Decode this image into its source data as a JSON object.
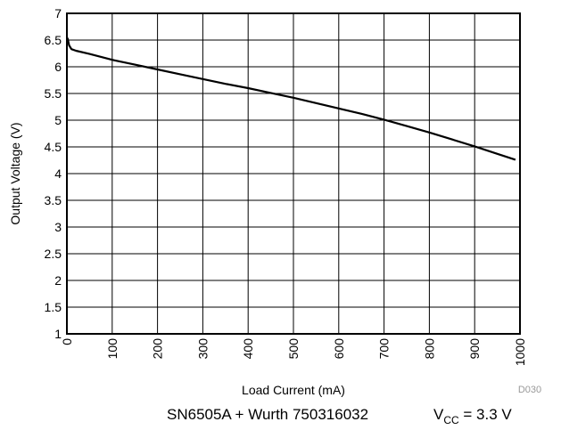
{
  "chart_data": {
    "type": "line",
    "xlabel": "Load Current (mA)",
    "ylabel": "Output Voltage (V)",
    "xlim": [
      0,
      1000
    ],
    "ylim": [
      1,
      7
    ],
    "x_ticks": [
      "0",
      "100",
      "200",
      "300",
      "400",
      "500",
      "600",
      "700",
      "800",
      "900",
      "1000"
    ],
    "y_ticks": [
      "1",
      "1.5",
      "2",
      "2.5",
      "3",
      "3.5",
      "4",
      "4.5",
      "5",
      "5.5",
      "6",
      "6.5",
      "7"
    ],
    "grid": true,
    "code": "D030",
    "series": [
      {
        "x": [
          0,
          2,
          5,
          10,
          20,
          50,
          100,
          150,
          200,
          250,
          300,
          350,
          400,
          450,
          500,
          550,
          600,
          650,
          700,
          750,
          800,
          850,
          900,
          950,
          990
        ],
        "y": [
          6.55,
          6.52,
          6.4,
          6.33,
          6.3,
          6.24,
          6.13,
          6.04,
          5.95,
          5.86,
          5.77,
          5.68,
          5.6,
          5.51,
          5.42,
          5.32,
          5.22,
          5.12,
          5.01,
          4.89,
          4.77,
          4.64,
          4.51,
          4.37,
          4.26
        ]
      }
    ]
  },
  "caption": {
    "device": "SN6505A + Wurth 750316032",
    "vcc_prefix": "V",
    "vcc_sub": "CC",
    "vcc_value": " = 3.3 V"
  }
}
